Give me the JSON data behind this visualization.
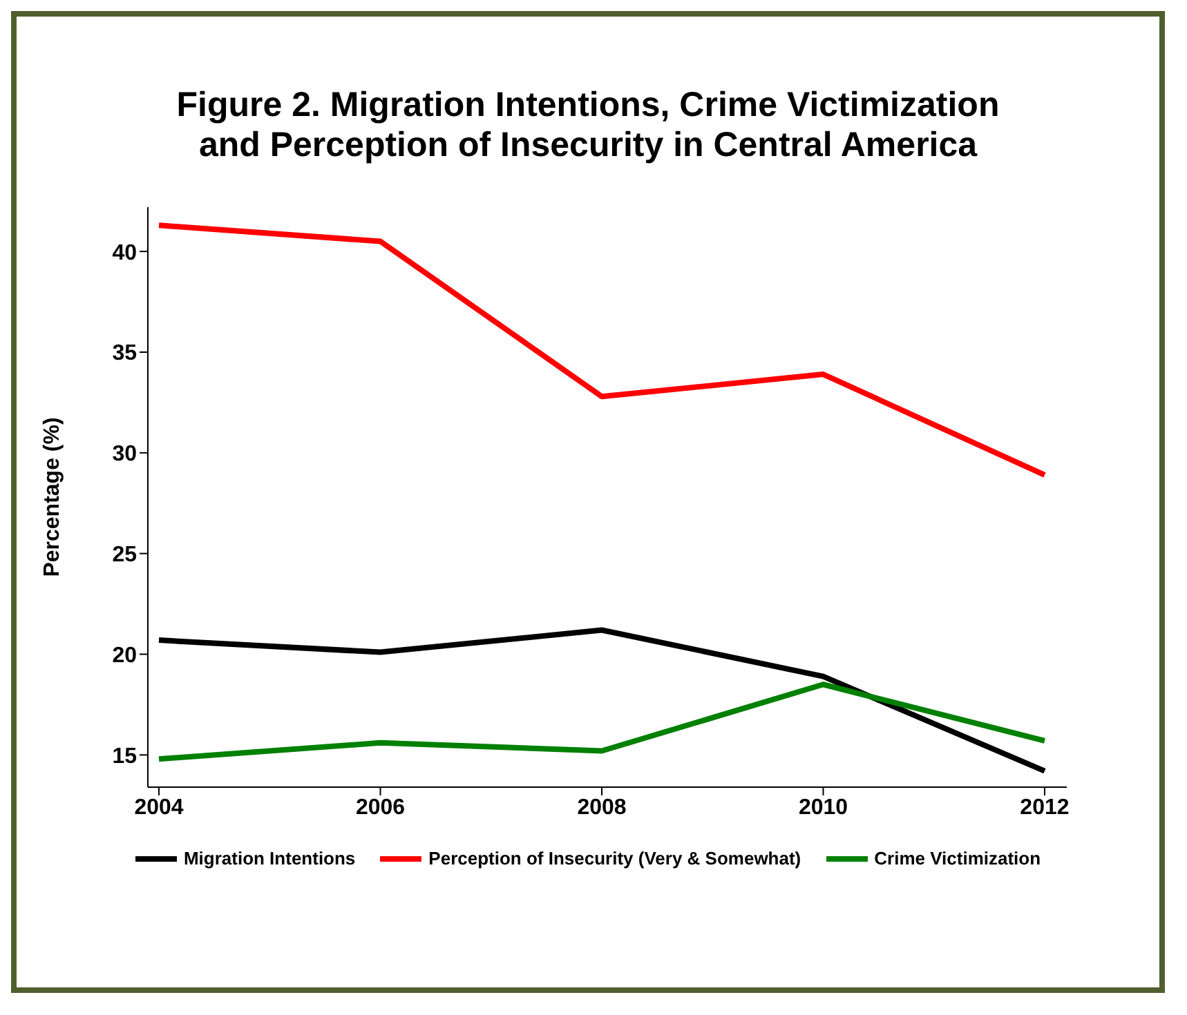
{
  "chart_data": {
    "type": "line",
    "title": "Figure 2. Migration Intentions, Crime Victimization and Perception of Insecurity in Central America",
    "ylabel": "Percentage (%)",
    "x": [
      2004,
      2006,
      2008,
      2010,
      2012
    ],
    "series": [
      {
        "name": "Migration Intentions",
        "color": "#000000",
        "values": [
          20.7,
          20.1,
          21.2,
          18.9,
          14.2
        ]
      },
      {
        "name": "Perception of Insecurity (Very & Somewhat)",
        "color": "#ff0000",
        "values": [
          41.3,
          40.5,
          32.8,
          33.9,
          28.9
        ]
      },
      {
        "name": "Crime Victimization",
        "color": "#008000",
        "values": [
          14.8,
          15.6,
          15.2,
          18.5,
          15.7
        ]
      }
    ],
    "xlim": [
      2003.9,
      2012.2
    ],
    "xticks": [
      2004,
      2006,
      2008,
      2010,
      2012
    ],
    "ylim": [
      13.4,
      42.2
    ],
    "yticks": [
      15,
      20,
      25,
      30,
      35,
      40
    ],
    "grid": false,
    "legend": "bottom",
    "marker": "none",
    "line_style": "solid"
  }
}
